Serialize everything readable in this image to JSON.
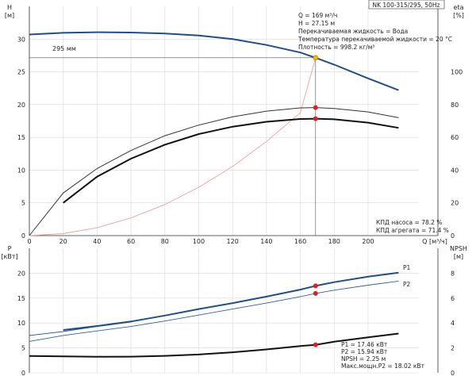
{
  "title_box": "NK 100-315/295, 50Hz",
  "chart_data": [
    {
      "type": "line",
      "xlabel": "Q [м³/ч]",
      "ylabel_left": "H\n[м]",
      "ylabel_right": "eta\n[%]",
      "xlim": [
        0,
        230
      ],
      "ylim_left": [
        0,
        35
      ],
      "ylim_right": [
        0,
        140
      ],
      "x_ticks": [
        0,
        20,
        40,
        60,
        80,
        100,
        120,
        140,
        160,
        180,
        200
      ],
      "y_ticks_left": [
        0,
        5,
        10,
        15,
        20,
        25,
        30
      ],
      "y_ticks_right": [
        0,
        20,
        40,
        60,
        80,
        100
      ],
      "grid": true,
      "series": [
        {
          "name": "295 мм",
          "axis": "left",
          "color": "#1f4e8c",
          "width": 2,
          "points": [
            [
              0,
              30.7
            ],
            [
              20,
              30.95
            ],
            [
              40,
              31.05
            ],
            [
              60,
              31.0
            ],
            [
              80,
              30.85
            ],
            [
              100,
              30.55
            ],
            [
              120,
              30.0
            ],
            [
              140,
              29.1
            ],
            [
              160,
              27.95
            ],
            [
              169,
              27.15
            ],
            [
              180,
              26.1
            ],
            [
              200,
              24.0
            ],
            [
              218,
              22.2
            ]
          ]
        },
        {
          "axis": "right",
          "color": "#f0a0a0",
          "width": 0.9,
          "points": [
            [
              0,
              0
            ],
            [
              20,
              1.2
            ],
            [
              40,
              4.8
            ],
            [
              60,
              10.8
            ],
            [
              80,
              19.0
            ],
            [
              100,
              29.5
            ],
            [
              120,
              42.2
            ],
            [
              140,
              57.5
            ],
            [
              160,
              75.0
            ],
            [
              169,
              108.6
            ]
          ]
        },
        {
          "axis": "right",
          "color": "#333333",
          "width": 1,
          "points": [
            [
              0,
              0
            ],
            [
              20,
              26
            ],
            [
              40,
              41
            ],
            [
              60,
              52
            ],
            [
              80,
              61
            ],
            [
              100,
              67.5
            ],
            [
              120,
              72.5
            ],
            [
              140,
              76
            ],
            [
              160,
              78
            ],
            [
              169,
              78.2
            ],
            [
              180,
              77.6
            ],
            [
              200,
              75.5
            ],
            [
              218,
              72
            ]
          ]
        },
        {
          "axis": "right",
          "color": "#111111",
          "width": 2,
          "points": [
            [
              20,
              20
            ],
            [
              40,
              36
            ],
            [
              60,
              47
            ],
            [
              80,
              55.5
            ],
            [
              100,
              62
            ],
            [
              120,
              66.5
            ],
            [
              140,
              69.5
            ],
            [
              160,
              71.2
            ],
            [
              169,
              71.4
            ],
            [
              180,
              71
            ],
            [
              200,
              69
            ],
            [
              218,
              65.8
            ]
          ]
        }
      ],
      "points": [
        {
          "x": 169,
          "y": 27.15,
          "axis": "left",
          "color": "#f5b800"
        },
        {
          "x": 169,
          "y": 78.2,
          "axis": "right",
          "color": "#e02020"
        },
        {
          "x": 169,
          "y": 71.4,
          "axis": "right",
          "color": "#e02020"
        }
      ],
      "annotations": [
        "Q = 169 м³/ч",
        "H = 27.15 м",
        "Перекачиваемая жидкость = Вода",
        "Температура перекачиваемой жидкости = 20 °C",
        "Плотность = 998.2 кг/м³"
      ],
      "eff_notes": [
        "КПД насоса = 78.2 %",
        "КПД агрегата = 71.4 %"
      ]
    },
    {
      "type": "line",
      "ylabel_left": "P\n[кВт]",
      "ylabel_right": "NPSH\n[м]",
      "xlim": [
        0,
        230
      ],
      "ylim_left": [
        0,
        25
      ],
      "ylim_right": [
        0,
        10
      ],
      "y_ticks_left": [
        0,
        5,
        10,
        15,
        20
      ],
      "y_ticks_right": [
        0,
        2,
        4,
        6,
        8
      ],
      "grid": true,
      "series": [
        {
          "name": "P1",
          "axis": "left",
          "color": "#1f4e8c",
          "width": 2,
          "points": [
            [
              20,
              8.6
            ],
            [
              40,
              9.4
            ],
            [
              60,
              10.3
            ],
            [
              80,
              11.5
            ],
            [
              100,
              12.8
            ],
            [
              120,
              14.0
            ],
            [
              140,
              15.3
            ],
            [
              160,
              16.7
            ],
            [
              169,
              17.46
            ],
            [
              180,
              18.2
            ],
            [
              200,
              19.3
            ],
            [
              218,
              20.1
            ]
          ]
        },
        {
          "axis": "left",
          "color": "#1f4e8c",
          "width": 0.9,
          "points": [
            [
              0,
              7.5
            ],
            [
              20,
              8.3
            ],
            [
              40,
              9.3
            ],
            [
              60,
              10.2
            ]
          ]
        },
        {
          "name": "P2",
          "axis": "left",
          "color": "#2f5fa0",
          "width": 0.9,
          "points": [
            [
              0,
              6.3
            ],
            [
              20,
              7.5
            ],
            [
              40,
              8.4
            ],
            [
              60,
              9.3
            ],
            [
              80,
              10.4
            ],
            [
              100,
              11.6
            ],
            [
              120,
              12.8
            ],
            [
              140,
              14.0
            ],
            [
              160,
              15.3
            ],
            [
              169,
              15.94
            ],
            [
              180,
              16.6
            ],
            [
              200,
              17.6
            ],
            [
              218,
              18.4
            ]
          ]
        },
        {
          "axis": "right",
          "color": "#111111",
          "width": 2,
          "points": [
            [
              0,
              1.35
            ],
            [
              20,
              1.32
            ],
            [
              40,
              1.29
            ],
            [
              60,
              1.3
            ],
            [
              80,
              1.36
            ],
            [
              100,
              1.47
            ],
            [
              120,
              1.65
            ],
            [
              140,
              1.88
            ],
            [
              160,
              2.15
            ],
            [
              169,
              2.25
            ],
            [
              180,
              2.5
            ],
            [
              200,
              2.85
            ],
            [
              218,
              3.15
            ]
          ]
        }
      ],
      "points": [
        {
          "x": 169,
          "y": 17.46,
          "axis": "left",
          "color": "#e02020"
        },
        {
          "x": 169,
          "y": 15.94,
          "axis": "left",
          "color": "#e02020"
        },
        {
          "x": 169,
          "y": 2.25,
          "axis": "right",
          "color": "#e02020"
        }
      ],
      "annotations": [
        "P1 = 17.46 кВт",
        "P2 = 15.94 кВт",
        "NPSH = 2.25 м",
        "Макс.мощн.P2 = 18.02 кВт"
      ]
    }
  ]
}
